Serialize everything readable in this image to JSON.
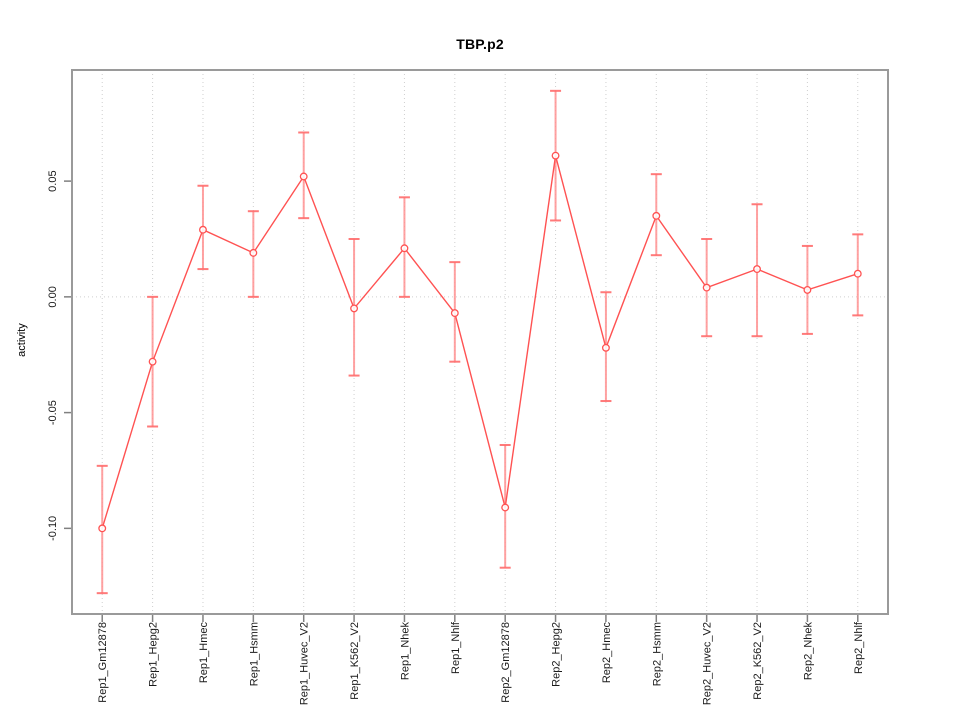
{
  "chart_data": {
    "type": "line",
    "title": "TBP.p2",
    "xlabel": "",
    "ylabel": "activity",
    "legend": "none",
    "grid": "dotted vertical line at each category; dotted horizontal line at y=0",
    "ylim": [
      -0.137,
      0.098
    ],
    "categories": [
      "Rep1_Gm12878",
      "Rep1_Hepg2",
      "Rep1_Hmec",
      "Rep1_Hsmm",
      "Rep1_Huvec_V2",
      "Rep1_K562_V2",
      "Rep1_Nhek",
      "Rep1_Nhlf",
      "Rep2_Gm12878",
      "Rep2_Hepg2",
      "Rep2_Hmec",
      "Rep2_Hsmm",
      "Rep2_Huvec_V2",
      "Rep2_K562_V2",
      "Rep2_Nhek",
      "Rep2_Nhlf"
    ],
    "series": [
      {
        "name": "activity",
        "values": [
          -0.1,
          -0.028,
          0.029,
          0.019,
          0.052,
          -0.005,
          0.021,
          -0.007,
          -0.091,
          0.061,
          -0.022,
          0.035,
          0.004,
          0.012,
          0.003,
          0.01
        ]
      }
    ],
    "error_low": [
      -0.128,
      -0.056,
      0.012,
      0.0,
      0.034,
      -0.034,
      0.0,
      -0.028,
      -0.117,
      0.033,
      -0.045,
      0.018,
      -0.017,
      -0.017,
      -0.016,
      -0.008
    ],
    "error_high": [
      -0.073,
      0.0,
      0.048,
      0.037,
      0.071,
      0.025,
      0.043,
      0.015,
      -0.064,
      0.089,
      0.002,
      0.053,
      0.025,
      0.04,
      0.022,
      0.027
    ],
    "yticks": [
      {
        "value": 0.05,
        "label": "0.05"
      },
      {
        "value": 0.0,
        "label": "0.00"
      },
      {
        "value": -0.05,
        "label": "-0.05"
      },
      {
        "value": -0.1,
        "label": "-0.10"
      }
    ]
  },
  "colors": {
    "series_line": "#ff5252",
    "error_bar": "#ff9090",
    "error_cap": "#ff6b6b",
    "point_stroke": "#ff5252",
    "point_fill": "#ffffff",
    "grid": "#cfcfcf",
    "box_border": "#9a9a9a",
    "tick": "#808080",
    "text": "#1a1a1a"
  }
}
